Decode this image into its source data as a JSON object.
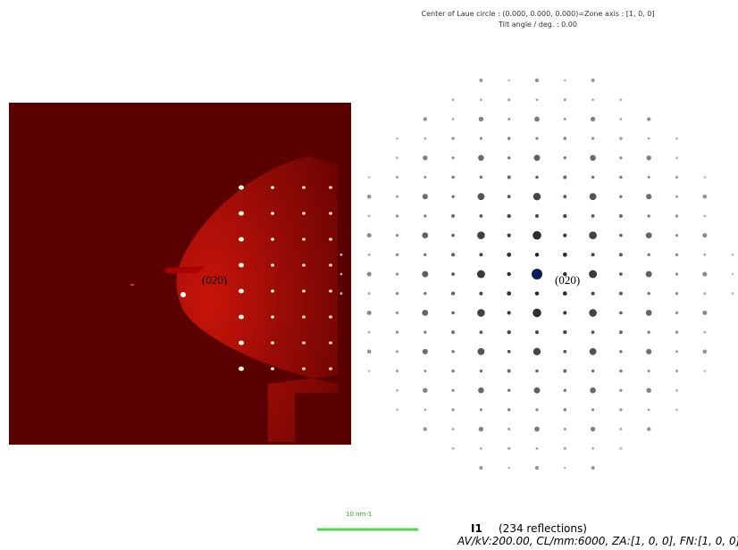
{
  "header": {
    "line1": "Center of Laue circle : (0.000, 0.000, 0.000)=Zone axis : [1, 0, 0]",
    "line2": "Tilt angle / deg. : 0.00"
  },
  "labels": {
    "left": "(020)",
    "right": "(020)"
  },
  "scale_bar": "10 nm-1",
  "footer": {
    "title": "I1",
    "reflections": "(234 reflections)",
    "params": "AV/kV:200.00, CL/mm:6000, ZA:[1, 0, 0], FN:[1, 0, 0]"
  }
}
